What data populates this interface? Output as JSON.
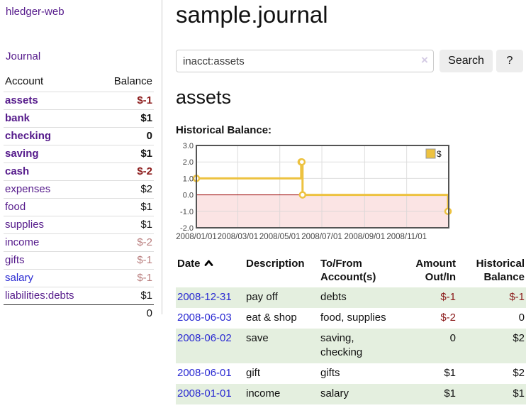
{
  "app": {
    "brand": "hledger-web",
    "nav_journal": "Journal"
  },
  "colors": {
    "link_purple": "#551a8b",
    "link_blue": "#2a2ad2",
    "negative_strong": "#8b1a1a",
    "negative_muted": "#b97d7d",
    "row_green": "#e4efdf",
    "button_gray": "#ededed",
    "chart_line": "#edc240",
    "chart_negative_fill": "#fbe4e4",
    "chart_zero_line": "#990000"
  },
  "sidebar": {
    "header_account": "Account",
    "header_balance": "Balance",
    "accounts": [
      {
        "name": "assets",
        "depth": 1,
        "balance": "$-1",
        "bold": true,
        "negative": true
      },
      {
        "name": "bank",
        "depth": 2,
        "balance": "$1",
        "bold": true,
        "negative": false
      },
      {
        "name": "checking",
        "depth": 3,
        "balance": "0",
        "bold": true,
        "negative": false
      },
      {
        "name": "saving",
        "depth": 3,
        "balance": "$1",
        "bold": true,
        "negative": false
      },
      {
        "name": "cash",
        "depth": 2,
        "balance": "$-2",
        "bold": true,
        "negative": true
      },
      {
        "name": "expenses",
        "depth": 1,
        "balance": "$2",
        "bold": false,
        "negative": false
      },
      {
        "name": "food",
        "depth": 2,
        "balance": "$1",
        "bold": false,
        "negative": false
      },
      {
        "name": "supplies",
        "depth": 2,
        "balance": "$1",
        "bold": false,
        "negative": false
      },
      {
        "name": "income",
        "depth": 1,
        "balance": "$-2",
        "bold": false,
        "negative": true
      },
      {
        "name": "gifts",
        "depth": 2,
        "balance": "$-1",
        "bold": false,
        "negative": true
      },
      {
        "name": "salary",
        "depth": 2,
        "balance": "$-1",
        "bold": false,
        "negative": true,
        "link_color": "#2a2ad2"
      },
      {
        "name": "liabilities:debts",
        "depth": 1,
        "balance": "$1",
        "bold": false,
        "negative": false
      }
    ],
    "total": "0"
  },
  "main": {
    "title": "sample.journal",
    "search": {
      "value": "inacct:assets",
      "clear_icon": "×",
      "button_label": "Search",
      "help_label": "?"
    },
    "account_heading": "assets",
    "chart_label": "Historical Balance:"
  },
  "chart_data": {
    "type": "line",
    "style": "steps",
    "title": "Historical Balance:",
    "series": [
      {
        "name": "$",
        "color": "#edc240",
        "points": [
          {
            "date": "2008-01-01",
            "value": 1.0
          },
          {
            "date": "2008-06-01",
            "value": 2.0
          },
          {
            "date": "2008-06-02",
            "value": 2.0
          },
          {
            "date": "2008-06-03",
            "value": 0.0
          },
          {
            "date": "2008-12-31",
            "value": -1.0
          }
        ]
      }
    ],
    "x_range": {
      "start": "2008-01-01",
      "end": "2009-01-01"
    },
    "ylim": [
      -2.0,
      3.0
    ],
    "y_ticks": [
      {
        "value": 3.0,
        "label": "3.0"
      },
      {
        "value": 2.0,
        "label": "2.0"
      },
      {
        "value": 1.0,
        "label": "1.0"
      },
      {
        "value": 0.0,
        "label": "0.0"
      },
      {
        "value": -1.0,
        "label": "-1.0"
      },
      {
        "value": -2.0,
        "label": "-2.0"
      }
    ],
    "x_ticks": [
      {
        "date": "2008-01-01",
        "label": "2008/01/01"
      },
      {
        "date": "2008-03-01",
        "label": "2008/03/01"
      },
      {
        "date": "2008-05-01",
        "label": "2008/05/01"
      },
      {
        "date": "2008-07-01",
        "label": "2008/07/01"
      },
      {
        "date": "2008-09-01",
        "label": "2008/09/01"
      },
      {
        "date": "2008-11-01",
        "label": "2008/11/01"
      }
    ],
    "legend": {
      "label": "$",
      "position": "top-right"
    },
    "grid": true,
    "zero_line_color": "#990000",
    "negative_region_color": "#fbe4e4"
  },
  "register": {
    "headers": {
      "date": "Date",
      "description": "Description",
      "tofrom": "To/From Account(s)",
      "amount": "Amount Out/In",
      "balance": "Historical Balance"
    },
    "rows": [
      {
        "date": "2008-12-31",
        "description": "pay off",
        "accounts": "debts",
        "amount": "$-1",
        "amount_neg": true,
        "balance": "$-1",
        "balance_neg": true
      },
      {
        "date": "2008-06-03",
        "description": "eat & shop",
        "accounts": "food, supplies",
        "amount": "$-2",
        "amount_neg": true,
        "balance": "0",
        "balance_neg": false
      },
      {
        "date": "2008-06-02",
        "description": "save",
        "accounts": "saving, checking",
        "amount": "0",
        "amount_neg": false,
        "balance": "$2",
        "balance_neg": false
      },
      {
        "date": "2008-06-01",
        "description": "gift",
        "accounts": "gifts",
        "amount": "$1",
        "amount_neg": false,
        "balance": "$2",
        "balance_neg": false
      },
      {
        "date": "2008-01-01",
        "description": "income",
        "accounts": "salary",
        "amount": "$1",
        "amount_neg": false,
        "balance": "$1",
        "balance_neg": false
      }
    ]
  }
}
